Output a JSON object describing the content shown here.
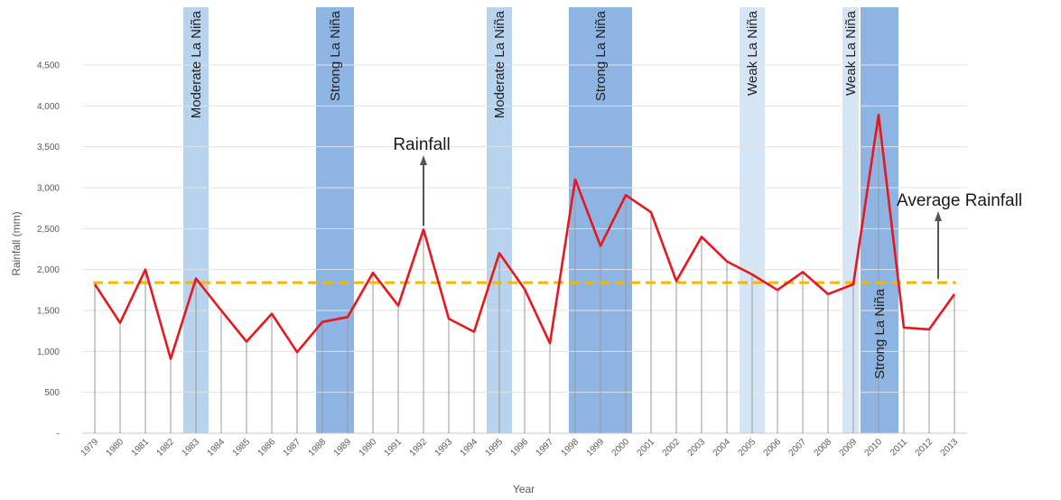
{
  "chart_data": {
    "type": "line",
    "xlabel": "Year",
    "ylabel": "Rainfall (mm)",
    "ylim": [
      0,
      4500
    ],
    "yticks": [
      "-",
      "500",
      "1,000",
      "1,500",
      "2,000",
      "2,500",
      "3,000",
      "3,500",
      "4,000",
      "4,500"
    ],
    "grid": true,
    "x": [
      "1979",
      "1980",
      "1981",
      "1982",
      "1983",
      "1984",
      "1985",
      "1986",
      "1987",
      "1988",
      "1989",
      "1990",
      "1991",
      "1992",
      "1993",
      "1994",
      "1995",
      "1996",
      "1997",
      "1998",
      "1999",
      "2000",
      "2001",
      "2002",
      "2003",
      "2004",
      "2005",
      "2006",
      "2007",
      "2008",
      "2009",
      "2010",
      "2011",
      "2012",
      "2013"
    ],
    "series": [
      {
        "values": [
          1820,
          1350,
          2000,
          910,
          1890,
          1500,
          1120,
          1460,
          990,
          1360,
          1420,
          1960,
          1560,
          2490,
          1400,
          1240,
          2200,
          1760,
          1100,
          3100,
          2290,
          2910,
          2700,
          1860,
          2400,
          2100,
          1940,
          1750,
          1970,
          1700,
          1820,
          3890,
          1290,
          1270,
          1700
        ],
        "color": "#e8171d",
        "style": "solid"
      }
    ],
    "average_rainfall": 1840,
    "average_color": "#f5b800",
    "bands": [
      {
        "label": "Moderate La Niña",
        "years": [
          "1983"
        ],
        "color": "#b7d3ee"
      },
      {
        "label": "Strong La Niña",
        "years": [
          "1988",
          "1989"
        ],
        "color": "#8db4e2"
      },
      {
        "label": "Moderate La Niña",
        "years": [
          "1995"
        ],
        "color": "#b7d3ee"
      },
      {
        "label": "Strong La Niña",
        "years": [
          "1998",
          "1999",
          "2000"
        ],
        "color": "#8db4e2"
      },
      {
        "label": "Weak La Niña",
        "years": [
          "2005"
        ],
        "color": "#d6e5f5"
      },
      {
        "label": "Weak La Niña",
        "years": [
          "2009"
        ],
        "color": "#d6e5f5"
      },
      {
        "label": "Strong La Niña",
        "years": [
          "2010"
        ],
        "color": "#8db4e2"
      }
    ],
    "annotations": [
      {
        "text": "Rainfall",
        "year": "1992"
      },
      {
        "text": "Average Rainfall",
        "year": "2012"
      }
    ]
  }
}
